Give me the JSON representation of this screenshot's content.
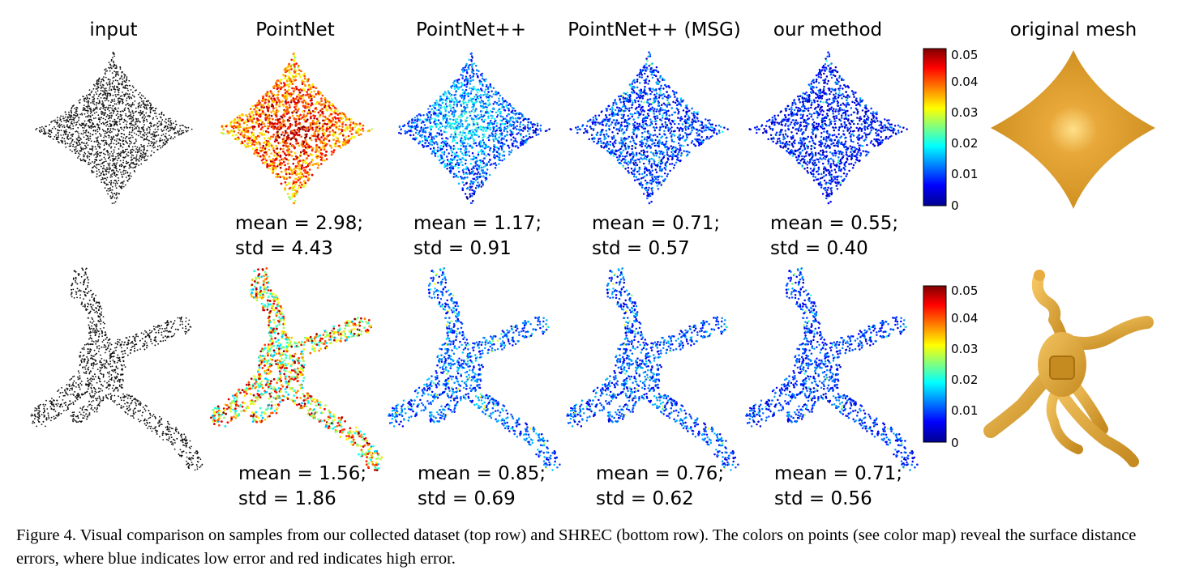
{
  "columns": [
    "input",
    "PointNet",
    "PointNet++",
    "PointNet++ (MSG)",
    "our method",
    "original mesh"
  ],
  "rows": [
    {
      "name": "top-row",
      "stats": [
        {
          "mean": "mean = 2.98;",
          "std": "std = 4.43"
        },
        {
          "mean": "mean = 1.17;",
          "std": "std = 0.91"
        },
        {
          "mean": "mean = 0.71;",
          "std": "std = 0.57"
        },
        {
          "mean": "mean = 0.55;",
          "std": "std = 0.40"
        }
      ]
    },
    {
      "name": "bottom-row",
      "stats": [
        {
          "mean": "mean = 1.56;",
          "std": "std = 1.86"
        },
        {
          "mean": "mean = 0.85;",
          "std": "std = 0.69"
        },
        {
          "mean": "mean = 0.76;",
          "std": "std = 0.62"
        },
        {
          "mean": "mean = 0.71;",
          "std": "std = 0.56"
        }
      ]
    }
  ],
  "colorbar": {
    "ticks": [
      "0.05",
      "0.04",
      "0.03",
      "0.02",
      "0.01",
      "0"
    ],
    "colors": [
      "#7f0000",
      "#ff0000",
      "#ffff00",
      "#00ffff",
      "#0000ff",
      "#00008f"
    ]
  },
  "error_levels": {
    "pointnet_top": 0.9,
    "pointnetpp_top": 0.35,
    "msg_top": 0.18,
    "ours_top": 0.14,
    "pointnet_bottom": 0.65,
    "pointnetpp_bottom": 0.22,
    "msg_bottom": 0.2,
    "ours_bottom": 0.18
  },
  "mesh_color": "#e0a030",
  "caption": "Figure 4. Visual comparison on samples from our collected dataset (top row) and SHREC (bottom row). The colors on points (see color map) reveal the surface distance errors, where blue indicates low error and red indicates high error."
}
